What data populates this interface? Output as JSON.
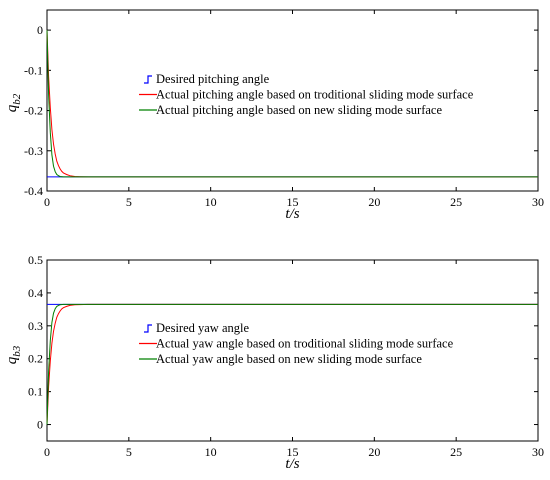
{
  "chart_data": [
    {
      "type": "line",
      "title": "",
      "xlabel": "t/s",
      "ylabel": "q_b2",
      "ylabel_main": "q",
      "ylabel_sub": "b2",
      "xlim": [
        0,
        30
      ],
      "ylim": [
        -0.4,
        0.05
      ],
      "xticks": [
        0,
        5,
        10,
        15,
        20,
        25,
        30
      ],
      "yticks": [
        -0.4,
        -0.3,
        -0.2,
        -0.1,
        0
      ],
      "xtick_labels": [
        "0",
        "5",
        "10",
        "15",
        "20",
        "25",
        "30"
      ],
      "ytick_labels": [
        "-0.4",
        "-0.3",
        "-0.2",
        "-0.1",
        "0"
      ],
      "legend_position": "center",
      "grid": false,
      "series": [
        {
          "name": "Desired pitching angle",
          "color": "#0000ff",
          "x": [
            0,
            30
          ],
          "y": [
            -0.365,
            -0.365
          ]
        },
        {
          "name": "Actual pitching angle based on troditional sliding mode surface",
          "color": "#ff0000",
          "x": [
            0,
            0.1,
            0.2,
            0.3,
            0.4,
            0.5,
            0.6,
            0.7,
            0.8,
            0.9,
            1.0,
            1.2,
            1.4,
            1.7,
            2.0,
            2.5,
            3.0,
            30
          ],
          "y": [
            0,
            -0.115,
            -0.193,
            -0.247,
            -0.283,
            -0.308,
            -0.326,
            -0.337,
            -0.345,
            -0.351,
            -0.355,
            -0.359,
            -0.362,
            -0.364,
            -0.3645,
            -0.365,
            -0.365,
            -0.365
          ]
        },
        {
          "name": "Actual pitching angle based on new sliding mode surface",
          "color": "#008000",
          "x": [
            0,
            0.1,
            0.2,
            0.3,
            0.4,
            0.5,
            0.6,
            0.7,
            0.8,
            1.0,
            1.3,
            30
          ],
          "y": [
            0,
            -0.16,
            -0.255,
            -0.31,
            -0.338,
            -0.352,
            -0.359,
            -0.362,
            -0.364,
            -0.365,
            -0.365,
            -0.365
          ]
        }
      ]
    },
    {
      "type": "line",
      "title": "",
      "xlabel": "t/s",
      "ylabel": "q_b3",
      "ylabel_main": "q",
      "ylabel_sub": "b3",
      "xlim": [
        0,
        30
      ],
      "ylim": [
        -0.05,
        0.5
      ],
      "xticks": [
        0,
        5,
        10,
        15,
        20,
        25,
        30
      ],
      "yticks": [
        0,
        0.1,
        0.2,
        0.3,
        0.4,
        0.5
      ],
      "xtick_labels": [
        "0",
        "5",
        "10",
        "15",
        "20",
        "25",
        "30"
      ],
      "ytick_labels": [
        "0",
        "0.1",
        "0.2",
        "0.3",
        "0.4",
        "0.5"
      ],
      "legend_position": "center",
      "grid": false,
      "series": [
        {
          "name": "Desired yaw angle",
          "color": "#0000ff",
          "x": [
            0,
            30
          ],
          "y": [
            0.365,
            0.365
          ]
        },
        {
          "name": "Actual yaw angle based on troditional sliding mode surface",
          "color": "#ff0000",
          "x": [
            0,
            0.1,
            0.2,
            0.3,
            0.4,
            0.5,
            0.6,
            0.7,
            0.8,
            0.9,
            1.0,
            1.2,
            1.4,
            1.7,
            2.0,
            2.5,
            3.0,
            30
          ],
          "y": [
            0,
            0.115,
            0.193,
            0.247,
            0.283,
            0.308,
            0.326,
            0.337,
            0.345,
            0.351,
            0.355,
            0.359,
            0.362,
            0.364,
            0.3645,
            0.365,
            0.365,
            0.365
          ]
        },
        {
          "name": "Actual yaw angle based on new sliding mode surface",
          "color": "#008000",
          "x": [
            0,
            0.1,
            0.2,
            0.3,
            0.4,
            0.5,
            0.6,
            0.7,
            0.8,
            1.0,
            1.3,
            30
          ],
          "y": [
            0,
            0.16,
            0.255,
            0.31,
            0.338,
            0.352,
            0.359,
            0.362,
            0.364,
            0.365,
            0.365,
            0.365
          ]
        }
      ]
    }
  ]
}
